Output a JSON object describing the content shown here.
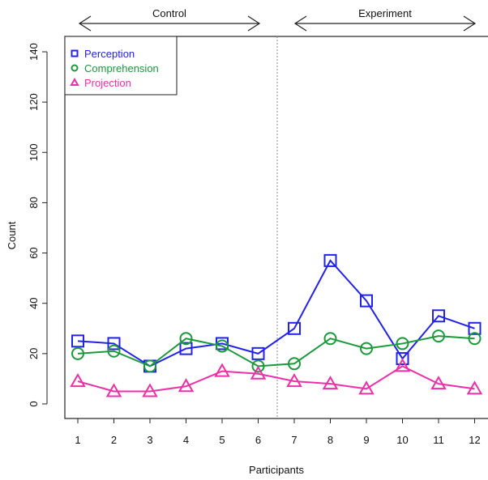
{
  "chart_data": {
    "type": "line",
    "title": "",
    "xlabel": "Participants",
    "ylabel": "Count",
    "categories": [
      "1",
      "2",
      "3",
      "4",
      "5",
      "6",
      "7",
      "8",
      "9",
      "10",
      "11",
      "12"
    ],
    "yticks": [
      0,
      20,
      40,
      60,
      80,
      100,
      120,
      140
    ],
    "ylim": [
      -6,
      145
    ],
    "grid": false,
    "legend_position": "top-left",
    "divider_after_category": "6",
    "groups": [
      {
        "label": "Control",
        "from": "1",
        "to": "6"
      },
      {
        "label": "Experiment",
        "from": "7",
        "to": "12"
      }
    ],
    "series": [
      {
        "name": "Perception",
        "color": "#2222ee",
        "marker": "square",
        "values": [
          25,
          24,
          15,
          22,
          24,
          20,
          30,
          57,
          41,
          18,
          35,
          30
        ]
      },
      {
        "name": "Comprehension",
        "color": "#1a9a3a",
        "marker": "circle",
        "values": [
          20,
          21,
          15,
          26,
          23,
          15,
          16,
          26,
          22,
          24,
          27,
          26
        ]
      },
      {
        "name": "Projection",
        "color": "#ee2fa8",
        "marker": "triangle",
        "values": [
          9,
          5,
          5,
          7,
          13,
          12,
          9,
          8,
          6,
          15,
          8,
          6
        ]
      }
    ]
  }
}
